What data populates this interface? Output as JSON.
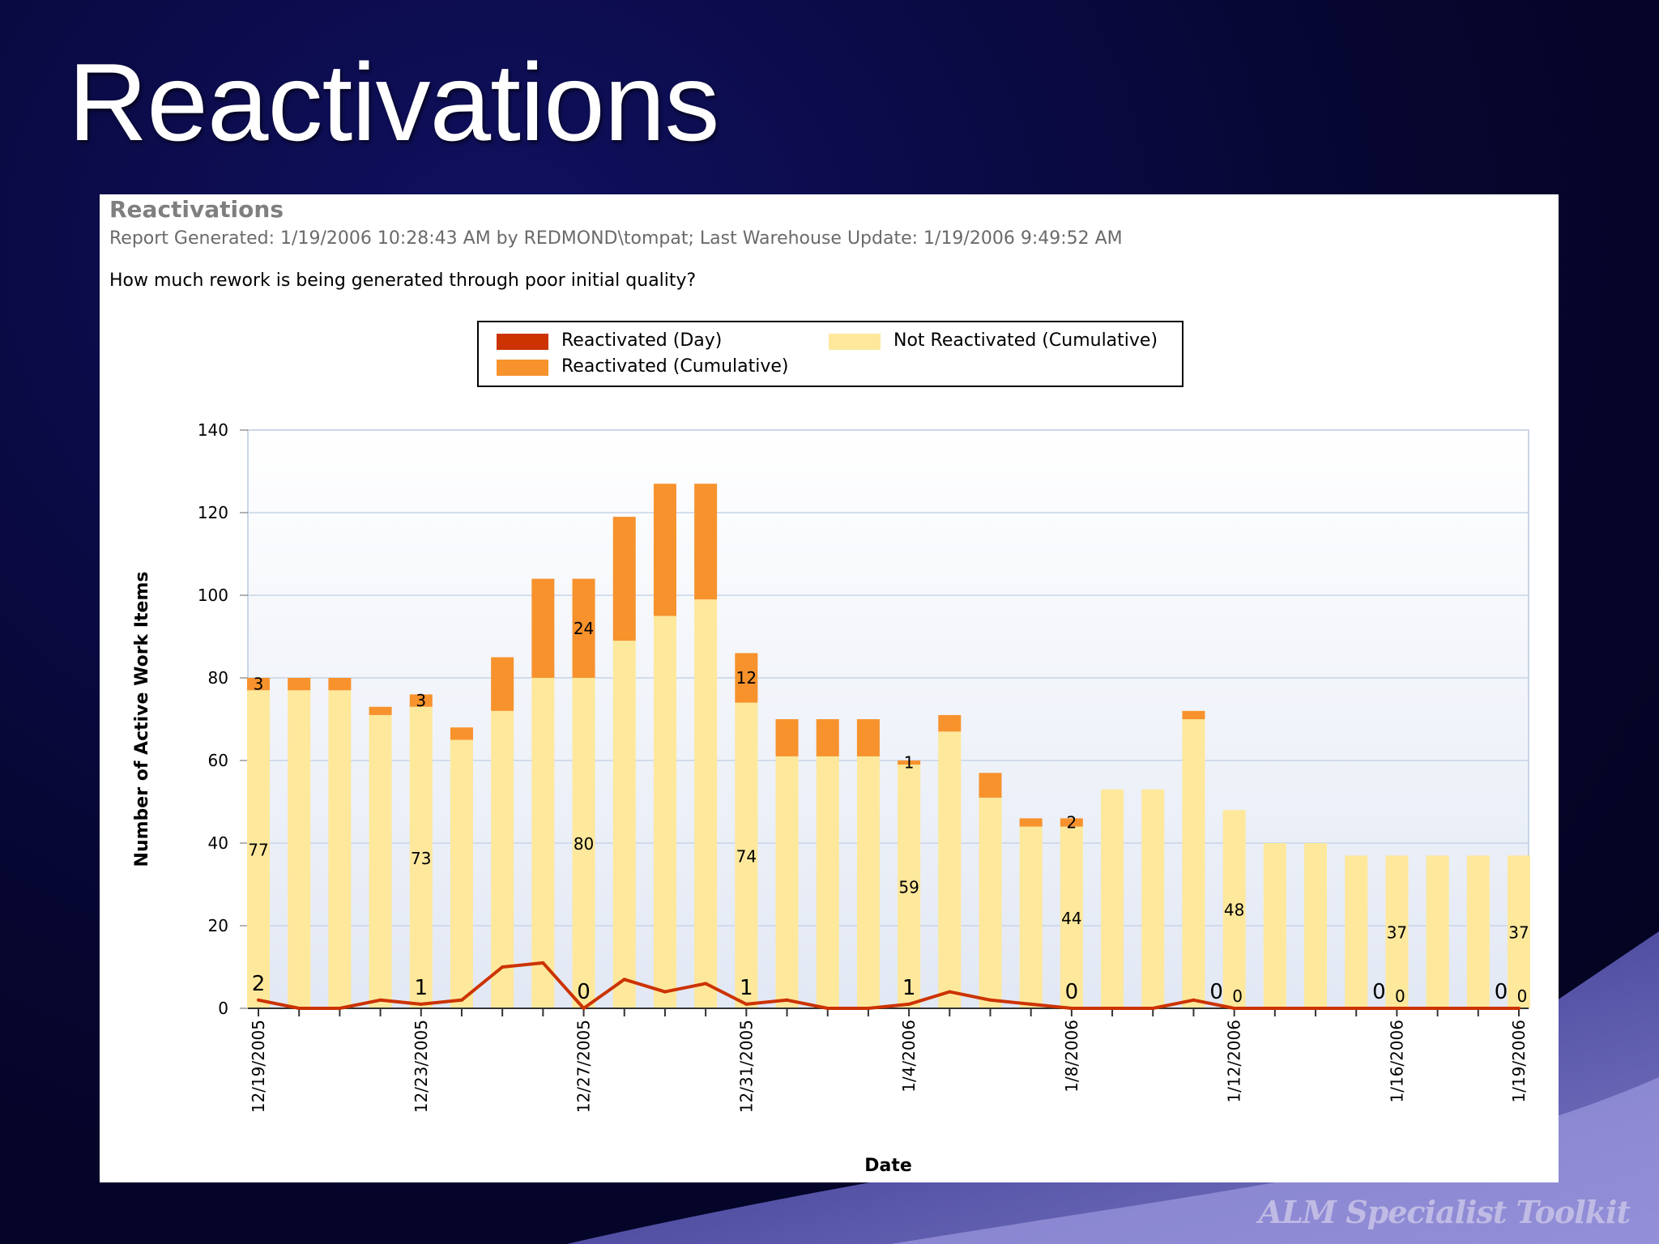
{
  "slide": {
    "title": "Reactivations",
    "brand": "ALM Specialist Toolkit"
  },
  "report": {
    "title": "Reactivations",
    "generated": "Report Generated: 1/19/2006 10:28:43 AM by REDMOND\\tompat; Last Warehouse Update: 1/19/2006 9:49:52 AM",
    "question": "How much rework is being generated through poor initial quality?"
  },
  "colors": {
    "reactivated_day": "#cc3300",
    "reactivated_cumulative": "#f7922d",
    "not_reactivated_cumulative": "#fde89c",
    "plot_bg_top": "#ffffff",
    "plot_bg_bottom": "#e2e8f4",
    "grid": "#c8d4e6"
  },
  "chart_data": {
    "type": "bar",
    "stacked": true,
    "title": "",
    "xlabel": "Date",
    "ylabel": "Number of Active Work Items",
    "ylim": [
      0,
      140
    ],
    "yticks": [
      0,
      20,
      40,
      60,
      80,
      100,
      120,
      140
    ],
    "grid": true,
    "legend": [
      {
        "key": "reactivated_day",
        "label": "Reactivated (Day)"
      },
      {
        "key": "not_reactivated_cumulative",
        "label": "Not Reactivated (Cumulative)"
      },
      {
        "key": "reactivated_cumulative",
        "label": "Reactivated (Cumulative)"
      }
    ],
    "categories": [
      "12/19/2005",
      "12/20/2005",
      "12/21/2005",
      "12/22/2005",
      "12/23/2005",
      "12/24/2005",
      "12/25/2005",
      "12/26/2005",
      "12/27/2005",
      "12/28/2005",
      "12/29/2005",
      "12/30/2005",
      "12/31/2005",
      "1/1/2006",
      "1/2/2006",
      "1/3/2006",
      "1/4/2006",
      "1/5/2006",
      "1/6/2006",
      "1/7/2006",
      "1/8/2006",
      "1/9/2006",
      "1/10/2006",
      "1/11/2006",
      "1/12/2006",
      "1/13/2006",
      "1/14/2006",
      "1/15/2006",
      "1/16/2006",
      "1/17/2006",
      "1/18/2006",
      "1/19/2006"
    ],
    "tick_labels": [
      "12/19/2005",
      "",
      "",
      "",
      "12/23/2005",
      "",
      "",
      "",
      "12/27/2005",
      "",
      "",
      "",
      "12/31/2005",
      "",
      "",
      "",
      "1/4/2006",
      "",
      "",
      "",
      "1/8/2006",
      "",
      "",
      "",
      "1/12/2006",
      "",
      "",
      "",
      "1/16/2006",
      "",
      "",
      "1/19/2006"
    ],
    "series": [
      {
        "name": "Not Reactivated (Cumulative)",
        "key": "not_reactivated_cumulative",
        "values": [
          77,
          77,
          77,
          71,
          73,
          65,
          72,
          80,
          80,
          89,
          95,
          99,
          74,
          61,
          61,
          61,
          59,
          67,
          51,
          44,
          44,
          53,
          53,
          70,
          48,
          40,
          40,
          37,
          37,
          37,
          37,
          37
        ]
      },
      {
        "name": "Reactivated (Cumulative)",
        "key": "reactivated_cumulative",
        "values": [
          3,
          3,
          3,
          2,
          3,
          3,
          13,
          24,
          24,
          30,
          32,
          28,
          12,
          9,
          9,
          9,
          1,
          4,
          6,
          2,
          2,
          0,
          0,
          2,
          0,
          0,
          0,
          0,
          0,
          0,
          0,
          0
        ]
      },
      {
        "name": "Reactivated (Day)",
        "key": "reactivated_day",
        "values": [
          2,
          0,
          0,
          2,
          1,
          2,
          10,
          11,
          0,
          7,
          4,
          6,
          1,
          2,
          0,
          0,
          1,
          4,
          2,
          1,
          0,
          0,
          0,
          2,
          0,
          0,
          0,
          0,
          0,
          0,
          0,
          0
        ]
      }
    ],
    "data_labels": {
      "not_reactivated": [
        {
          "index": 0,
          "text": "77"
        },
        {
          "index": 4,
          "text": "73"
        },
        {
          "index": 8,
          "text": "80"
        },
        {
          "index": 12,
          "text": "74"
        },
        {
          "index": 16,
          "text": "59"
        },
        {
          "index": 20,
          "text": "44"
        },
        {
          "index": 24,
          "text": "48"
        },
        {
          "index": 28,
          "text": "37"
        },
        {
          "index": 31,
          "text": "37"
        }
      ],
      "reactivated": [
        {
          "index": 0,
          "text": "3"
        },
        {
          "index": 4,
          "text": "3"
        },
        {
          "index": 8,
          "text": "24"
        },
        {
          "index": 12,
          "text": "12"
        },
        {
          "index": 16,
          "text": "1"
        },
        {
          "index": 20,
          "text": "2"
        }
      ],
      "day": [
        {
          "index": 0,
          "text": "2"
        },
        {
          "index": 4,
          "text": "1"
        },
        {
          "index": 8,
          "text": "0"
        },
        {
          "index": 12,
          "text": "1"
        },
        {
          "index": 16,
          "text": "1"
        },
        {
          "index": 20,
          "text": "0"
        },
        {
          "index": 24,
          "text": "0"
        },
        {
          "index": 24,
          "text": "0",
          "small": true
        },
        {
          "index": 28,
          "text": "0"
        },
        {
          "index": 28,
          "text": "0",
          "small": true
        },
        {
          "index": 31,
          "text": "0"
        },
        {
          "index": 31,
          "text": "0",
          "small": true
        }
      ]
    }
  }
}
